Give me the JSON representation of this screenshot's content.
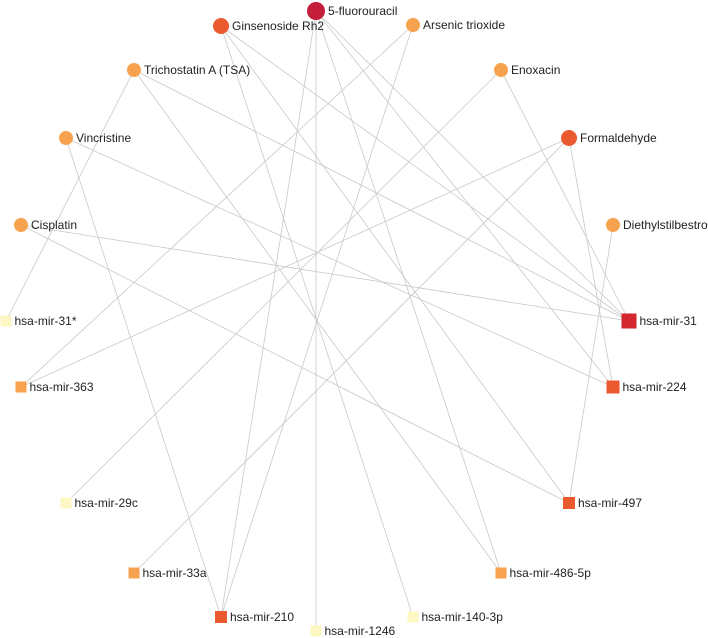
{
  "drugs": [
    {
      "label": "5-fluorouracil",
      "color": "#c41e3a",
      "shape": "circle",
      "size": "large"
    },
    {
      "label": "Ginsenoside Rh2",
      "color": "#ea5a2e",
      "shape": "circle",
      "size": "medium"
    },
    {
      "label": "Arsenic trioxide",
      "color": "#f7a24f",
      "shape": "circle",
      "size": "small"
    },
    {
      "label": "Trichostatin A (TSA)",
      "color": "#f7a24f",
      "shape": "circle",
      "size": "small"
    },
    {
      "label": "Enoxacin",
      "color": "#f7a24f",
      "shape": "circle",
      "size": "small"
    },
    {
      "label": "Vincristine",
      "color": "#f7a24f",
      "shape": "circle",
      "size": "small"
    },
    {
      "label": "Formaldehyde",
      "color": "#ea5a2e",
      "shape": "circle",
      "size": "medium"
    },
    {
      "label": "Cisplatin",
      "color": "#f7a24f",
      "shape": "circle",
      "size": "small"
    },
    {
      "label": "Diethylstilbestrol",
      "color": "#f7a24f",
      "shape": "circle",
      "size": "small"
    }
  ],
  "mirnas": [
    {
      "label": "hsa-mir-31*",
      "color": "#fdf7c3",
      "shape": "square"
    },
    {
      "label": "hsa-mir-31",
      "color": "#d3262f",
      "shape": "square"
    },
    {
      "label": "hsa-mir-363",
      "color": "#f7a24f",
      "shape": "square"
    },
    {
      "label": "hsa-mir-224",
      "color": "#ea5a2e",
      "shape": "square"
    },
    {
      "label": "hsa-mir-29c",
      "color": "#fdf7c3",
      "shape": "square"
    },
    {
      "label": "hsa-mir-497",
      "color": "#ea5a2e",
      "shape": "square"
    },
    {
      "label": "hsa-mir-33a",
      "color": "#f7a24f",
      "shape": "square"
    },
    {
      "label": "hsa-mir-486-5p",
      "color": "#f7a24f",
      "shape": "square"
    },
    {
      "label": "hsa-mir-210",
      "color": "#ea5a2e",
      "shape": "square"
    },
    {
      "label": "hsa-mir-140-3p",
      "color": "#fdf7c3",
      "shape": "square"
    },
    {
      "label": "hsa-mir-1246",
      "color": "#fdf7c3",
      "shape": "square"
    }
  ],
  "edges": [
    [
      "5-fluorouracil",
      "hsa-mir-31"
    ],
    [
      "5-fluorouracil",
      "hsa-mir-224"
    ],
    [
      "5-fluorouracil",
      "hsa-mir-210"
    ],
    [
      "5-fluorouracil",
      "hsa-mir-1246"
    ],
    [
      "5-fluorouracil",
      "hsa-mir-486-5p"
    ],
    [
      "Ginsenoside Rh2",
      "hsa-mir-31"
    ],
    [
      "Ginsenoside Rh2",
      "hsa-mir-497"
    ],
    [
      "Ginsenoside Rh2",
      "hsa-mir-140-3p"
    ],
    [
      "Arsenic trioxide",
      "hsa-mir-363"
    ],
    [
      "Arsenic trioxide",
      "hsa-mir-210"
    ],
    [
      "Trichostatin A (TSA)",
      "hsa-mir-31*"
    ],
    [
      "Trichostatin A (TSA)",
      "hsa-mir-31"
    ],
    [
      "Trichostatin A (TSA)",
      "hsa-mir-486-5p"
    ],
    [
      "Enoxacin",
      "hsa-mir-29c"
    ],
    [
      "Enoxacin",
      "hsa-mir-31"
    ],
    [
      "Vincristine",
      "hsa-mir-224"
    ],
    [
      "Vincristine",
      "hsa-mir-210"
    ],
    [
      "Formaldehyde",
      "hsa-mir-363"
    ],
    [
      "Formaldehyde",
      "hsa-mir-33a"
    ],
    [
      "Formaldehyde",
      "hsa-mir-224"
    ],
    [
      "Cisplatin",
      "hsa-mir-31"
    ],
    [
      "Cisplatin",
      "hsa-mir-497"
    ],
    [
      "Diethylstilbestrol",
      "hsa-mir-497"
    ]
  ]
}
